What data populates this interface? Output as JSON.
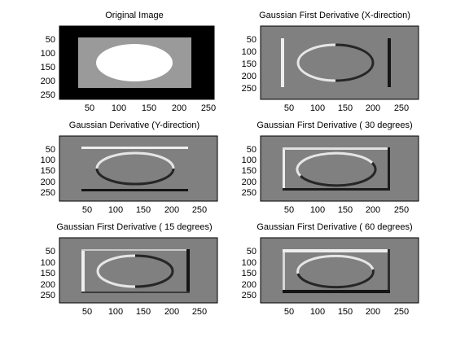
{
  "figure": {
    "panels": [
      {
        "title": "Original Image",
        "content": "original-image",
        "x_ticks": [
          "50",
          "100",
          "150",
          "200",
          "250"
        ],
        "y_ticks": [
          "50",
          "100",
          "150",
          "200",
          "250"
        ]
      },
      {
        "title": "Gaussian First Derivative (X-direction)",
        "content": "derivative-x",
        "x_ticks": [
          "50",
          "100",
          "150",
          "200",
          "250"
        ],
        "y_ticks": [
          "50",
          "100",
          "150",
          "200",
          "250"
        ]
      },
      {
        "title": "Gaussian Derivative (Y-direction)",
        "content": "derivative-y",
        "x_ticks": [
          "50",
          "100",
          "150",
          "200",
          "250"
        ],
        "y_ticks": [
          "50",
          "100",
          "150",
          "200",
          "250"
        ]
      },
      {
        "title": "Gaussian First Derivative ( 30 degrees)",
        "content": "derivative-30",
        "x_ticks": [
          "50",
          "100",
          "150",
          "200",
          "250"
        ],
        "y_ticks": [
          "50",
          "100",
          "150",
          "200",
          "250"
        ]
      },
      {
        "title": "Gaussian First Derivative ( 15 degrees)",
        "content": "derivative-15",
        "x_ticks": [
          "50",
          "100",
          "150",
          "200",
          "250"
        ],
        "y_ticks": [
          "50",
          "100",
          "150",
          "200",
          "250"
        ]
      },
      {
        "title": "Gaussian First Derivative ( 60 degrees)",
        "content": "derivative-60",
        "x_ticks": [
          "50",
          "100",
          "150",
          "200",
          "250"
        ],
        "y_ticks": [
          "50",
          "100",
          "150",
          "200",
          "250"
        ]
      }
    ],
    "colors": {
      "black": "#000000",
      "white": "#ffffff",
      "gray_mid": "#808080",
      "gray_light": "#9a9a9a",
      "gray_background": "#7f7f7f",
      "edge_bright": "#eeeeee",
      "edge_dark": "#151515"
    }
  }
}
